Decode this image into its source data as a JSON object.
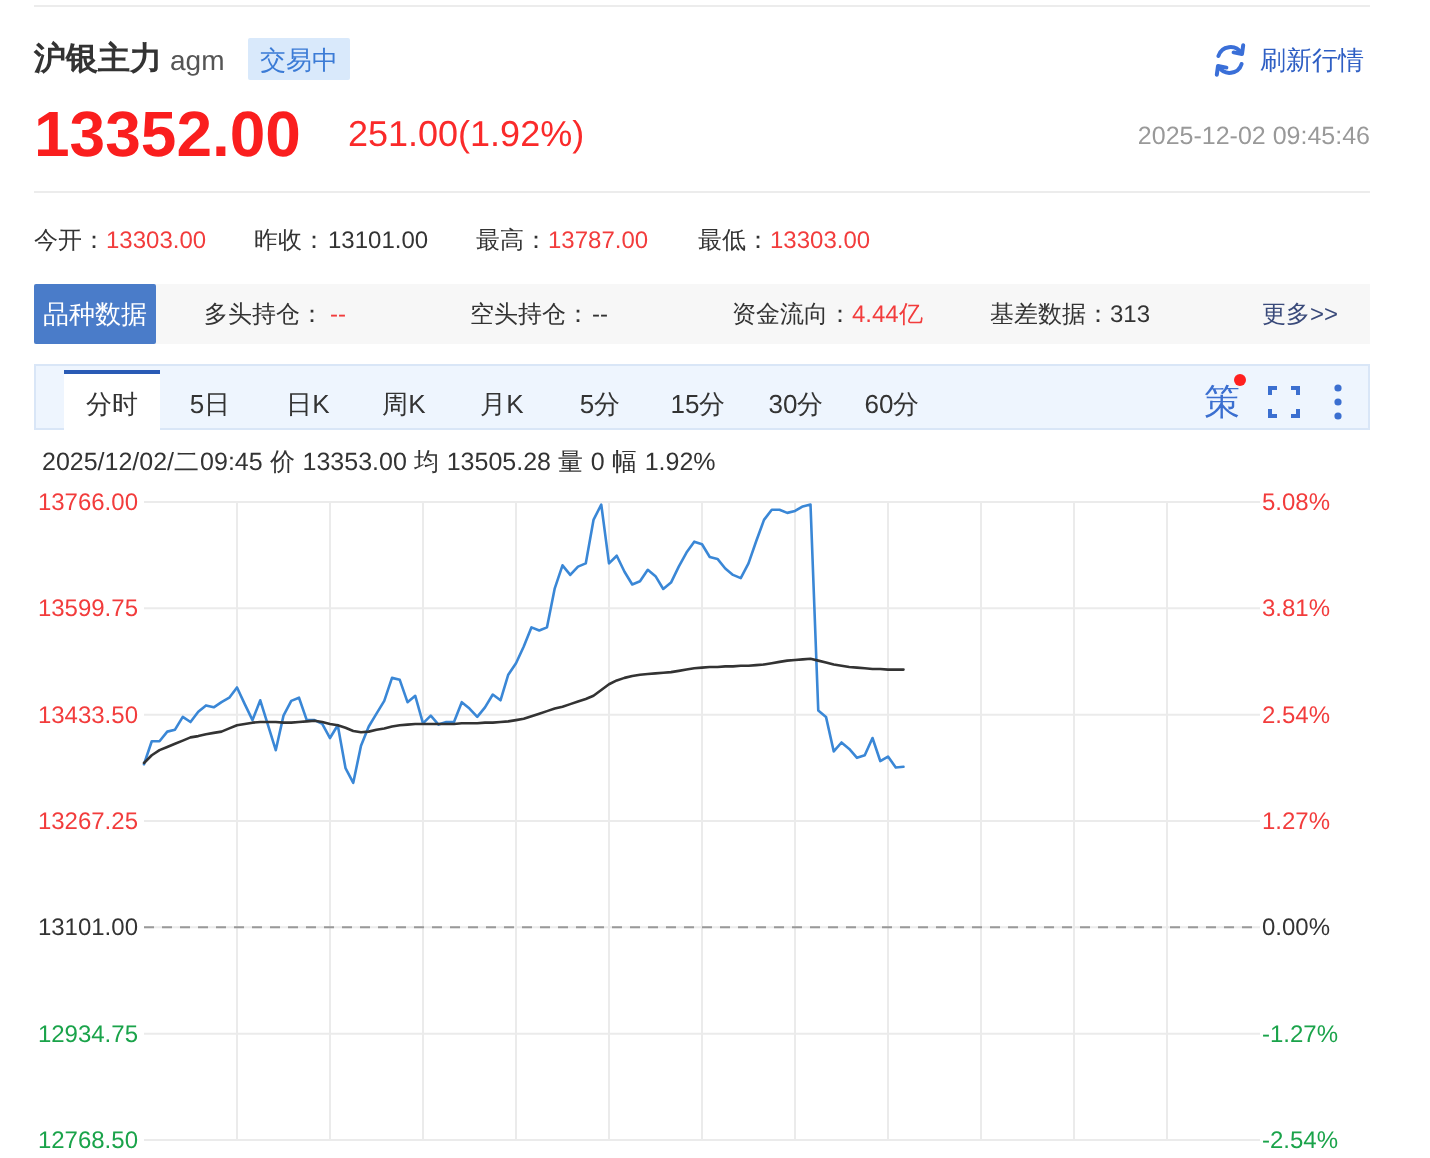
{
  "chart_data": {
    "type": "line",
    "title": "沪银主力",
    "subtitle": "2025/12/02/二09:45  价 13353.00  均 13505.28  量 0  幅 1.92%",
    "annotations": [
      "agm",
      "交易中",
      "刷新行情",
      "13352.00",
      "251.00(1.92%)",
      "2025-12-02 09:45:46",
      "今开：",
      "13303.00",
      "昨收：",
      "13101.00",
      "最高：",
      "13787.00",
      "最低：",
      "13303.00",
      "品种数据",
      "多头持仓：",
      "--",
      "空头持仓：",
      "--",
      "资金流向：",
      "4.44亿",
      "基差数据：",
      "313",
      "更多>>",
      "分时",
      "5日",
      "日K",
      "周K",
      "月K",
      "5分",
      "15分",
      "30分",
      "60分",
      "策"
    ],
    "categories": [
      null,
      null,
      null,
      null,
      null,
      null,
      null,
      null,
      null,
      null,
      null,
      null,
      null,
      null,
      null,
      null,
      null,
      null,
      null,
      null,
      null,
      null,
      null,
      null,
      null,
      null,
      null,
      null,
      null,
      null,
      null,
      null,
      null,
      null,
      null,
      null,
      null,
      null,
      null,
      null,
      null,
      null,
      null,
      null,
      null,
      null,
      null,
      null,
      null,
      null,
      null,
      null,
      null,
      null,
      null,
      null,
      null,
      null,
      null,
      null,
      null,
      null,
      null,
      null,
      null,
      null,
      null,
      null,
      null,
      null,
      null,
      null,
      null,
      null,
      null,
      null,
      null,
      null,
      null,
      null,
      null,
      null,
      null,
      null,
      null,
      null,
      null,
      null,
      null,
      null,
      null,
      null,
      null,
      null,
      null,
      null,
      null,
      null,
      null,
      null,
      null,
      null,
      null,
      null,
      null,
      null,
      null,
      null,
      null,
      null,
      null,
      null,
      null,
      null,
      null,
      null,
      null,
      null,
      null,
      null,
      null,
      null,
      null,
      null,
      null,
      null,
      null,
      null,
      null,
      null,
      null,
      null,
      null,
      null,
      null,
      null,
      null,
      null,
      null,
      null,
      null,
      null,
      null,
      null,
      null
    ],
    "series": [
      {
        "color": "#3a87d6",
        "values": [
          13356,
          13392,
          13392,
          13407,
          13410,
          13430,
          13422,
          13438,
          13448,
          13445,
          13453,
          13460,
          13476,
          13450,
          13425,
          13456,
          13417,
          13378,
          13432,
          13455,
          13460,
          13425,
          13425,
          13419,
          13397,
          13417,
          13350,
          13327,
          13385,
          13415,
          13435,
          13455,
          13491,
          13488,
          13453,
          13463,
          13420,
          13432,
          13418,
          13422,
          13422,
          13453,
          13443,
          13430,
          13445,
          13465,
          13456,
          13496,
          13514,
          13540,
          13570,
          13565,
          13570,
          13631,
          13667,
          13652,
          13665,
          13670,
          13738,
          13762,
          13670,
          13682,
          13657,
          13637,
          13642,
          13660,
          13650,
          13630,
          13640,
          13665,
          13687,
          13704,
          13700,
          13680,
          13677,
          13662,
          13652,
          13647,
          13670,
          13705,
          13738,
          13754,
          13754,
          13749,
          13752,
          13759,
          13762,
          13440,
          13430,
          13376,
          13390,
          13380,
          13366,
          13370,
          13397,
          13361,
          13368,
          13351,
          13352,
          null,
          null,
          null,
          null,
          null,
          null,
          null,
          null,
          null,
          null,
          null,
          null,
          null,
          null,
          null,
          null,
          null,
          null,
          null,
          null,
          null,
          null,
          null,
          null,
          null,
          null,
          null,
          null,
          null,
          null,
          null,
          null,
          null,
          null,
          null,
          null,
          null,
          null,
          null,
          null,
          null,
          null,
          null,
          null,
          null,
          null
        ]
      },
      {
        "color": "#333333",
        "values": [
          13358,
          13370,
          13378,
          13383,
          13388,
          13393,
          13398,
          13400,
          13403,
          13405,
          13407,
          13412,
          13417,
          13419,
          13421,
          13422,
          13422,
          13422,
          13421,
          13421,
          13422,
          13423,
          13424,
          13422,
          13419,
          13417,
          13413,
          13408,
          13406,
          13407,
          13410,
          13412,
          13415,
          13417,
          13418,
          13419,
          13419,
          13419,
          13419,
          13419,
          13419,
          13420,
          13420,
          13420,
          13421,
          13421,
          13422,
          13423,
          13425,
          13427,
          13431,
          13435,
          13439,
          13443,
          13446,
          13450,
          13454,
          13458,
          13463,
          13472,
          13481,
          13487,
          13491,
          13494,
          13496,
          13497,
          13498,
          13499,
          13500,
          13502,
          13504,
          13506,
          13507,
          13508,
          13508,
          13509,
          13509,
          13510,
          13510,
          13511,
          13512,
          13514,
          13516,
          13518,
          13519,
          13520,
          13521,
          13518,
          13515,
          13512,
          13510,
          13508,
          13507,
          13506,
          13505,
          13505,
          13504,
          13504,
          13504,
          null,
          null,
          null,
          null,
          null,
          null,
          null,
          null,
          null,
          null,
          null,
          null,
          null,
          null,
          null,
          null,
          null,
          null,
          null,
          null,
          null,
          null,
          null,
          null,
          null,
          null,
          null,
          null,
          null,
          null,
          null,
          null,
          null,
          null,
          null,
          null,
          null,
          null,
          null,
          null,
          null,
          null,
          null,
          null,
          null,
          null
        ]
      }
    ],
    "ylim": [
      12768.5,
      13766
    ],
    "yticks": [
      {
        "value": 12768.5,
        "label": "12768.50"
      },
      {
        "value": 12934.75,
        "label": "12934.75"
      },
      {
        "value": 13101,
        "label": "13101.00"
      },
      {
        "value": 13267.25,
        "label": "13267.25"
      },
      {
        "value": 13433.5,
        "label": "13433.50"
      },
      {
        "value": 13599.75,
        "label": "13599.75"
      },
      {
        "value": 13766,
        "label": "13766.00"
      }
    ],
    "y2lim": [
      -2.54,
      5.08
    ],
    "y2ticks": [
      {
        "value": -2.54,
        "label": "-2.54%"
      },
      {
        "value": -1.27,
        "label": "-1.27%"
      },
      {
        "value": 0,
        "label": "0.00%"
      },
      {
        "value": 1.27,
        "label": "1.27%"
      },
      {
        "value": 2.54,
        "label": "2.54%"
      },
      {
        "value": 3.81,
        "label": "3.81%"
      },
      {
        "value": 5.08,
        "label": "5.08%"
      }
    ],
    "ref_lines": [
      {
        "axis": "y",
        "value": 13101,
        "line_style": "dashed",
        "color": "#999999"
      }
    ],
    "grid": true
  }
}
